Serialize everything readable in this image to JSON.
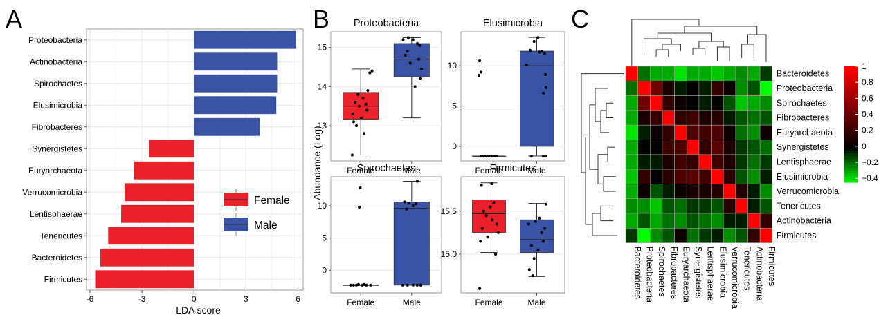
{
  "panel_labels": [
    "A",
    "B",
    "C"
  ],
  "chart_data": [
    {
      "type": "bar",
      "orientation": "horizontal",
      "categories": [
        "Proteobacteria",
        "Actinobacteria",
        "Spirochaetes",
        "Elusimicrobia",
        "Fibrobacteres",
        "Synergistetes",
        "Euryarchaeota",
        "Verrucomicrobia",
        "Lentisphaerae",
        "Tenericutes",
        "Bacteroidetes",
        "Firmicutes"
      ],
      "values": [
        5.9,
        4.8,
        4.8,
        4.75,
        3.8,
        -2.6,
        -3.45,
        -4.0,
        -4.2,
        -4.95,
        -5.4,
        -5.7
      ],
      "group": [
        "Male",
        "Male",
        "Male",
        "Male",
        "Male",
        "Female",
        "Female",
        "Female",
        "Female",
        "Female",
        "Female",
        "Female"
      ],
      "xlabel": "LDA score",
      "xlim": [
        -6.2,
        6.3
      ],
      "xticks": [
        -6,
        -3,
        0,
        3,
        6
      ],
      "xtick_labels": [
        "-6",
        "-3",
        "0",
        "3",
        "6"
      ],
      "grid": true,
      "legend": {
        "placement": "center-right",
        "entries": [
          {
            "label": "Female",
            "color": "#e8212a"
          },
          {
            "label": "Male",
            "color": "#3a53a4"
          }
        ]
      },
      "colors": {
        "Female": "#e8212a",
        "Male": "#3a53a4"
      }
    },
    {
      "type": "box",
      "ylabel": "Abundance (Log)",
      "categories": [
        "Female",
        "Male"
      ],
      "colors": {
        "Female": "#e8212a",
        "Male": "#3a53a4"
      },
      "panels": [
        {
          "title": "Proteobacteria",
          "ylim": [
            12.1,
            15.4
          ],
          "yticks": [
            13,
            14,
            15
          ],
          "ytick_labels": [
            "13",
            "14",
            "15"
          ],
          "boxes": [
            {
              "category": "Female",
              "min": 12.25,
              "q1": 13.15,
              "median": 13.5,
              "q3": 13.85,
              "max": 14.45
            },
            {
              "category": "Male",
              "min": 13.2,
              "q1": 14.25,
              "median": 14.7,
              "q3": 15.1,
              "max": 15.25
            }
          ],
          "points": [
            {
              "category": "Female",
              "x": -0.3,
              "y": 12.25
            },
            {
              "category": "Female",
              "x": -0.15,
              "y": 13.0
            },
            {
              "category": "Female",
              "x": 0.12,
              "y": 12.8
            },
            {
              "category": "Female",
              "x": 0.02,
              "y": 13.2
            },
            {
              "category": "Female",
              "x": -0.28,
              "y": 13.3
            },
            {
              "category": "Female",
              "x": 0.22,
              "y": 13.4
            },
            {
              "category": "Female",
              "x": -0.05,
              "y": 13.5
            },
            {
              "category": "Female",
              "x": 0.18,
              "y": 13.55
            },
            {
              "category": "Female",
              "x": -0.2,
              "y": 13.6
            },
            {
              "category": "Female",
              "x": 0.08,
              "y": 13.7
            },
            {
              "category": "Female",
              "x": -0.1,
              "y": 13.8
            },
            {
              "category": "Female",
              "x": 0.25,
              "y": 13.9
            },
            {
              "category": "Female",
              "x": 0.32,
              "y": 14.35
            },
            {
              "category": "Female",
              "x": 0.4,
              "y": 14.4
            },
            {
              "category": "Female",
              "x": -0.25,
              "y": 13.1
            },
            {
              "category": "Male",
              "x": -0.3,
              "y": 15.2
            },
            {
              "category": "Male",
              "x": -0.12,
              "y": 15.25
            },
            {
              "category": "Male",
              "x": 0.05,
              "y": 15.2
            },
            {
              "category": "Male",
              "x": 0.2,
              "y": 15.1
            },
            {
              "category": "Male",
              "x": -0.22,
              "y": 14.8
            },
            {
              "category": "Male",
              "x": -0.05,
              "y": 14.6
            },
            {
              "category": "Male",
              "x": 0.25,
              "y": 14.7
            },
            {
              "category": "Male",
              "x": 0.35,
              "y": 14.45
            },
            {
              "category": "Male",
              "x": -0.15,
              "y": 14.9
            },
            {
              "category": "Male",
              "x": 0.3,
              "y": 14.2
            },
            {
              "category": "Male",
              "x": 0.12,
              "y": 14.0
            },
            {
              "category": "Male",
              "x": 0.28,
              "y": 15.05
            }
          ]
        },
        {
          "title": "Elusimicrobia",
          "ylim": [
            -1.8,
            14.2
          ],
          "yticks": [
            0,
            5,
            10
          ],
          "ytick_labels": [
            "0",
            "5",
            "10"
          ],
          "boxes": [
            {
              "category": "Female",
              "min": -1.2,
              "q1": -1.2,
              "median": -1.2,
              "q3": -1.2,
              "max": -1.2
            },
            {
              "category": "Male",
              "min": -1.2,
              "q1": 0.0,
              "median": 10.0,
              "q3": 11.8,
              "max": 13.5
            }
          ],
          "points": [
            {
              "category": "Female",
              "x": -0.35,
              "y": 10.6
            },
            {
              "category": "Female",
              "x": -0.38,
              "y": 8.8
            },
            {
              "category": "Female",
              "x": -0.3,
              "y": 9.2
            },
            {
              "category": "Female",
              "x": -0.3,
              "y": -1.2
            },
            {
              "category": "Female",
              "x": -0.2,
              "y": -1.2
            },
            {
              "category": "Female",
              "x": -0.1,
              "y": -1.2
            },
            {
              "category": "Female",
              "x": 0.0,
              "y": -1.2
            },
            {
              "category": "Female",
              "x": 0.1,
              "y": -1.2
            },
            {
              "category": "Female",
              "x": 0.2,
              "y": -1.2
            },
            {
              "category": "Female",
              "x": 0.3,
              "y": -1.2
            },
            {
              "category": "Male",
              "x": -0.1,
              "y": 13.0
            },
            {
              "category": "Male",
              "x": 0.05,
              "y": 13.5
            },
            {
              "category": "Male",
              "x": -0.25,
              "y": 11.9
            },
            {
              "category": "Male",
              "x": 0.2,
              "y": 11.8
            },
            {
              "category": "Male",
              "x": 0.3,
              "y": 11.5
            },
            {
              "category": "Male",
              "x": -0.38,
              "y": 10.1
            },
            {
              "category": "Male",
              "x": 0.1,
              "y": 11.7
            },
            {
              "category": "Male",
              "x": 0.33,
              "y": 8.9
            },
            {
              "category": "Male",
              "x": 0.35,
              "y": 7.3
            },
            {
              "category": "Male",
              "x": 0.25,
              "y": 6.6
            },
            {
              "category": "Male",
              "x": -0.2,
              "y": -1.2
            },
            {
              "category": "Male",
              "x": 0.25,
              "y": -1.2
            },
            {
              "category": "Male",
              "x": 0.35,
              "y": -1.2
            }
          ]
        },
        {
          "title": "Spirochaetes",
          "ylim": [
            -3.5,
            14.5
          ],
          "yticks": [
            0,
            5,
            10
          ],
          "ytick_labels": [
            "0",
            "5",
            "10"
          ],
          "boxes": [
            {
              "category": "Female",
              "min": -2.3,
              "q1": -2.3,
              "median": -2.3,
              "q3": -2.3,
              "max": -2.3
            },
            {
              "category": "Male",
              "min": -2.3,
              "q1": -2.3,
              "median": 9.6,
              "q3": 10.6,
              "max": 13.8
            }
          ],
          "points": [
            {
              "category": "Female",
              "x": -0.02,
              "y": 12.8
            },
            {
              "category": "Female",
              "x": -0.05,
              "y": 9.8
            },
            {
              "category": "Female",
              "x": -0.35,
              "y": -2.3
            },
            {
              "category": "Female",
              "x": -0.25,
              "y": -2.3
            },
            {
              "category": "Female",
              "x": -0.15,
              "y": -2.3
            },
            {
              "category": "Female",
              "x": -0.08,
              "y": -2.2
            },
            {
              "category": "Female",
              "x": 0.05,
              "y": -2.3
            },
            {
              "category": "Female",
              "x": 0.12,
              "y": -2.2
            },
            {
              "category": "Female",
              "x": 0.2,
              "y": -2.3
            },
            {
              "category": "Female",
              "x": 0.35,
              "y": -2.3
            },
            {
              "category": "Male",
              "x": 0.2,
              "y": 13.8
            },
            {
              "category": "Male",
              "x": -0.25,
              "y": 10.6
            },
            {
              "category": "Male",
              "x": -0.1,
              "y": 10.4
            },
            {
              "category": "Male",
              "x": 0.05,
              "y": 10.0
            },
            {
              "category": "Male",
              "x": -0.18,
              "y": 9.5
            },
            {
              "category": "Male",
              "x": 0.15,
              "y": 10.3
            },
            {
              "category": "Male",
              "x": -0.32,
              "y": -2.3
            },
            {
              "category": "Male",
              "x": -0.15,
              "y": -2.3
            },
            {
              "category": "Male",
              "x": 0.05,
              "y": -2.3
            },
            {
              "category": "Male",
              "x": 0.2,
              "y": -2.3
            },
            {
              "category": "Male",
              "x": 0.32,
              "y": -2.3
            }
          ]
        },
        {
          "title": "Firmicutes",
          "ylim": [
            14.55,
            15.9
          ],
          "yticks": [
            15.0,
            15.5
          ],
          "ytick_labels": [
            "15.0",
            "15.5"
          ],
          "boxes": [
            {
              "category": "Female",
              "min": 15.02,
              "q1": 15.25,
              "median": 15.47,
              "q3": 15.63,
              "max": 15.83
            },
            {
              "category": "Male",
              "min": 14.74,
              "q1": 15.02,
              "median": 15.17,
              "q3": 15.4,
              "max": 15.59
            }
          ],
          "points": [
            {
              "category": "Female",
              "x": -0.35,
              "y": 14.6
            },
            {
              "category": "Female",
              "x": -0.28,
              "y": 15.8
            },
            {
              "category": "Female",
              "x": 0.1,
              "y": 15.82
            },
            {
              "category": "Female",
              "x": -0.2,
              "y": 15.5
            },
            {
              "category": "Female",
              "x": 0.05,
              "y": 15.55
            },
            {
              "category": "Female",
              "x": 0.18,
              "y": 15.6
            },
            {
              "category": "Female",
              "x": -0.1,
              "y": 15.45
            },
            {
              "category": "Female",
              "x": 0.3,
              "y": 15.35
            },
            {
              "category": "Female",
              "x": -0.25,
              "y": 15.3
            },
            {
              "category": "Female",
              "x": 0.35,
              "y": 15.25
            },
            {
              "category": "Female",
              "x": -0.05,
              "y": 15.2
            },
            {
              "category": "Female",
              "x": -0.32,
              "y": 15.15
            },
            {
              "category": "Female",
              "x": 0.25,
              "y": 15.0
            },
            {
              "category": "Female",
              "x": 0.12,
              "y": 15.4
            },
            {
              "category": "Male",
              "x": 0.35,
              "y": 15.58
            },
            {
              "category": "Male",
              "x": 0.1,
              "y": 15.42
            },
            {
              "category": "Male",
              "x": -0.05,
              "y": 15.38
            },
            {
              "category": "Male",
              "x": -0.3,
              "y": 15.35
            },
            {
              "category": "Male",
              "x": 0.3,
              "y": 15.3
            },
            {
              "category": "Male",
              "x": -0.2,
              "y": 15.1
            },
            {
              "category": "Male",
              "x": 0.05,
              "y": 15.05
            },
            {
              "category": "Male",
              "x": 0.25,
              "y": 15.15
            },
            {
              "category": "Male",
              "x": -0.1,
              "y": 14.95
            },
            {
              "category": "Male",
              "x": -0.28,
              "y": 14.82
            },
            {
              "category": "Male",
              "x": -0.15,
              "y": 14.75
            },
            {
              "category": "Male",
              "x": 0.18,
              "y": 15.25
            }
          ]
        }
      ]
    },
    {
      "type": "heatmap",
      "rows": [
        "Bacteroidetes",
        "Proteobacteria",
        "Spirochaetes",
        "Fibrobacteres",
        "Euryarchaeota",
        "Synergistetes",
        "Lentisphaerae",
        "Elusimicrobia",
        "Verrucomicrobia",
        "Tenericutes",
        "Actinobacteria",
        "Firmicutes"
      ],
      "columns": [
        "Bacteroidetes",
        "Proteobacteria",
        "Spirochaetes",
        "Fibrobacteres",
        "Euryarchaeota",
        "Synergistetes",
        "Lentisphaerae",
        "Elusimicrobia",
        "Verrucomicrobia",
        "Tenericutes",
        "Actinobacteria",
        "Firmicutes"
      ],
      "values": [
        [
          1.0,
          -0.2,
          -0.3,
          -0.3,
          -0.4,
          -0.3,
          -0.3,
          -0.35,
          -0.3,
          -0.25,
          -0.3,
          -0.1
        ],
        [
          -0.2,
          1.0,
          0.45,
          0.1,
          -0.05,
          0.0,
          -0.05,
          0.2,
          0.05,
          -0.25,
          -0.15,
          -0.45
        ],
        [
          -0.3,
          0.45,
          1.0,
          0.2,
          0.05,
          0.0,
          -0.05,
          0.0,
          -0.15,
          -0.35,
          -0.3,
          -0.25
        ],
        [
          -0.3,
          0.1,
          0.2,
          1.0,
          0.2,
          0.25,
          0.1,
          0.15,
          -0.05,
          -0.15,
          -0.2,
          -0.15
        ],
        [
          -0.4,
          -0.05,
          0.05,
          0.2,
          1.0,
          0.3,
          0.25,
          0.3,
          0.05,
          -0.2,
          -0.25,
          0.05
        ],
        [
          -0.3,
          0.0,
          0.0,
          0.25,
          0.3,
          1.0,
          0.2,
          0.35,
          0.1,
          -0.1,
          -0.15,
          -0.2
        ],
        [
          -0.3,
          -0.05,
          -0.05,
          0.1,
          0.25,
          0.2,
          1.0,
          0.25,
          0.1,
          -0.1,
          -0.2,
          -0.1
        ],
        [
          -0.35,
          0.2,
          0.0,
          0.15,
          0.3,
          0.35,
          0.25,
          1.0,
          0.15,
          -0.15,
          -0.25,
          -0.05
        ],
        [
          -0.3,
          0.05,
          -0.15,
          -0.05,
          0.05,
          0.1,
          0.1,
          0.15,
          1.0,
          0.15,
          -0.05,
          -0.25
        ],
        [
          -0.25,
          -0.25,
          -0.35,
          -0.15,
          -0.2,
          -0.1,
          -0.1,
          -0.15,
          0.15,
          1.0,
          -0.05,
          -0.15
        ],
        [
          -0.3,
          -0.15,
          -0.3,
          -0.2,
          -0.25,
          -0.15,
          -0.2,
          -0.25,
          -0.05,
          -0.05,
          1.0,
          0.2
        ],
        [
          -0.1,
          -0.45,
          -0.25,
          -0.15,
          0.05,
          -0.2,
          -0.1,
          -0.05,
          -0.25,
          -0.15,
          0.2,
          1.0
        ]
      ],
      "colorbar": {
        "range": [
          -0.45,
          1.0
        ],
        "ticks": [
          1,
          0.8,
          0.6,
          0.4,
          0.2,
          0,
          -0.2,
          -0.4
        ],
        "tick_labels": [
          "1",
          "0.8",
          "0.6",
          "0.4",
          "0.2",
          "0",
          "−0.2",
          "−0.4"
        ],
        "colors": {
          "high": "#ff0000",
          "mid": "#000000",
          "low": "#00ff00"
        }
      }
    }
  ]
}
